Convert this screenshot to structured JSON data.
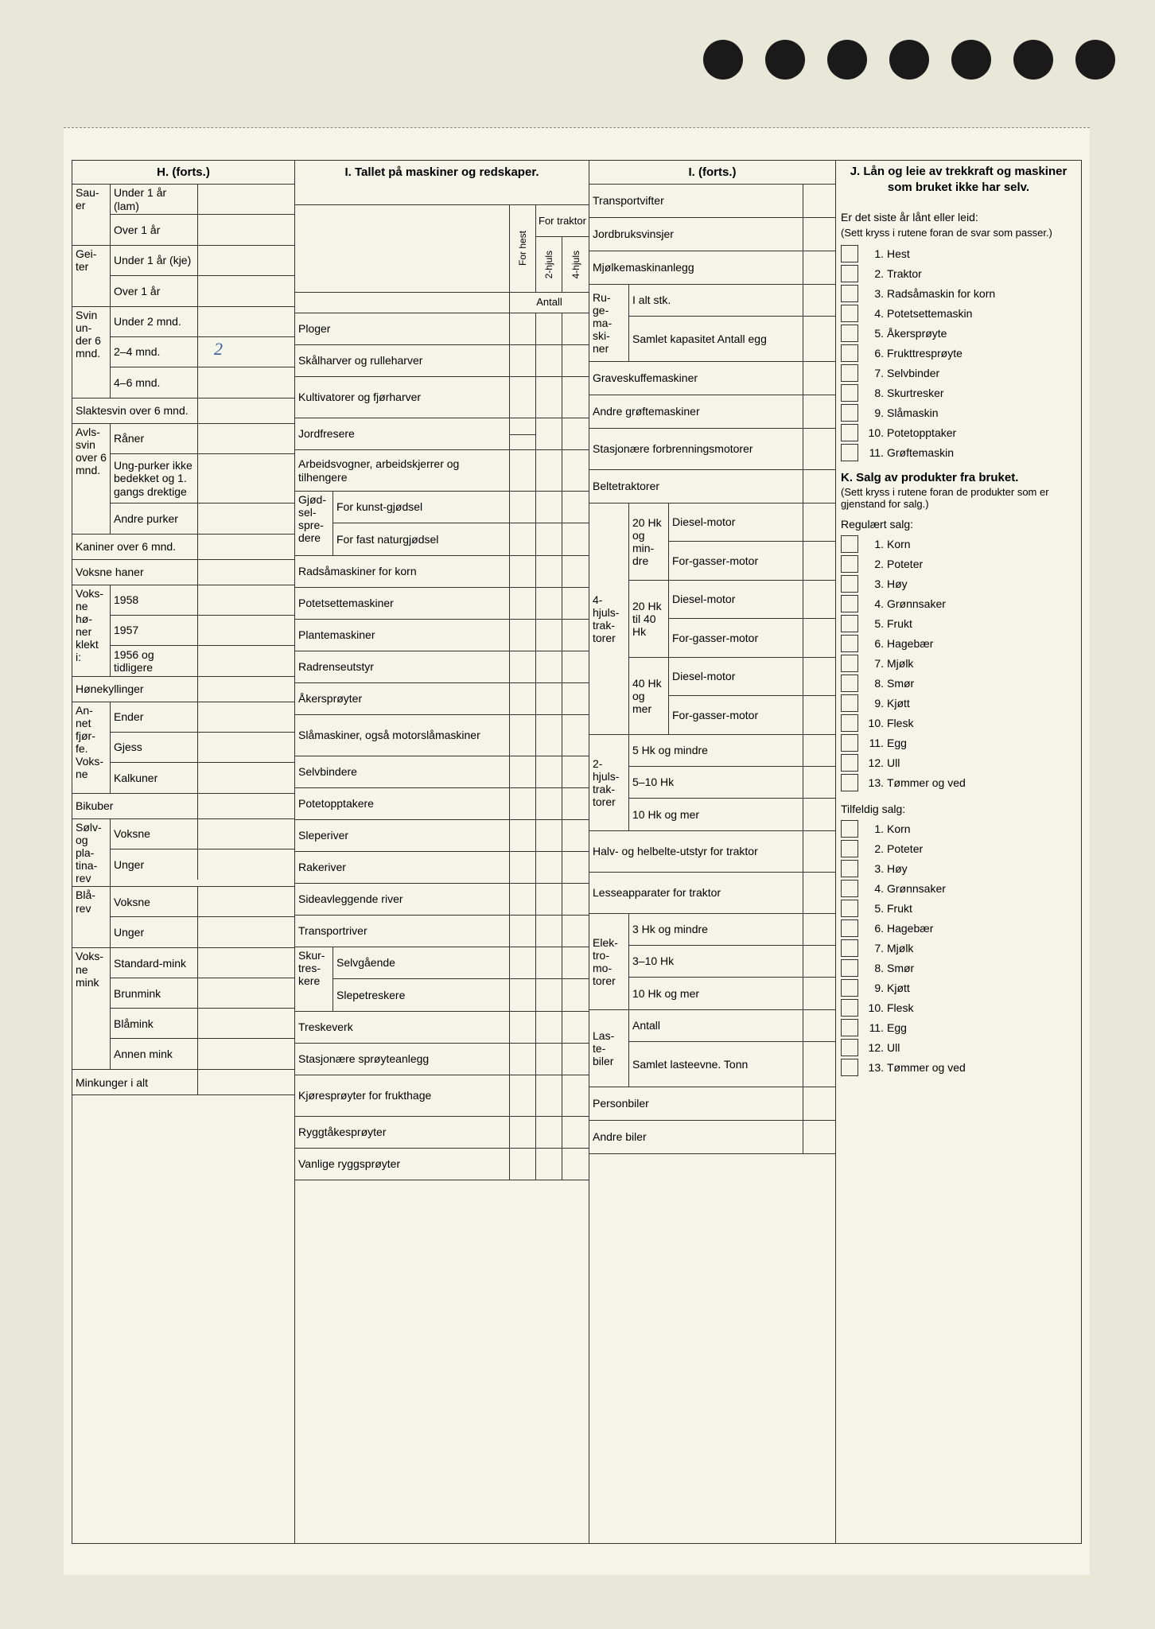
{
  "background_color": "#e8e8d8",
  "paper_color": "#f4f5e8",
  "border_color": "#333333",
  "handwriting_color": "#3a5a9a",
  "punch_holes": 7,
  "H": {
    "title": "H. (forts.)",
    "groups": [
      {
        "stub": "Sau-er",
        "rows": [
          {
            "l": "Under 1 år (lam)"
          },
          {
            "l": "Over 1 år"
          }
        ]
      },
      {
        "stub": "Gei-ter",
        "rows": [
          {
            "l": "Under 1 år (kje)"
          },
          {
            "l": "Over 1 år"
          }
        ]
      },
      {
        "stub": "Svin un-der 6 mnd.",
        "rows": [
          {
            "l": "Under 2 mnd."
          },
          {
            "l": "2–4 mnd.",
            "hand": "2"
          },
          {
            "l": "4–6 mnd."
          }
        ]
      },
      {
        "stub": "",
        "full": "Slaktesvin over 6 mnd."
      },
      {
        "stub": "Avls-svin over 6 mnd.",
        "rows": [
          {
            "l": "Råner"
          },
          {
            "l": "Ung-purker ikke bedekket og 1. gangs drektige"
          },
          {
            "l": "Andre purker"
          }
        ]
      },
      {
        "stub": "",
        "full": "Kaniner over 6 mnd."
      },
      {
        "stub": "",
        "full": "Voksne haner"
      },
      {
        "stub": "Voks-ne hø-ner klekt i:",
        "rows": [
          {
            "l": "1958"
          },
          {
            "l": "1957"
          },
          {
            "l": "1956 og tidligere"
          }
        ]
      },
      {
        "stub": "",
        "full": "Hønekyllinger"
      },
      {
        "stub": "An-net fjør-fe. Voks-ne",
        "rows": [
          {
            "l": "Ender"
          },
          {
            "l": "Gjess"
          },
          {
            "l": "Kalkuner"
          }
        ]
      },
      {
        "stub": "",
        "full": "Bikuber"
      },
      {
        "stub": "Sølv- og pla-tina-rev",
        "rows": [
          {
            "l": "Voksne"
          },
          {
            "l": "Unger"
          }
        ]
      },
      {
        "stub": "Blå-rev",
        "rows": [
          {
            "l": "Voksne"
          },
          {
            "l": "Unger"
          }
        ]
      },
      {
        "stub": "Voks-ne mink",
        "rows": [
          {
            "l": "Standard-mink"
          },
          {
            "l": "Brunmink"
          },
          {
            "l": "Blåmink"
          },
          {
            "l": "Annen mink"
          }
        ]
      },
      {
        "stub": "",
        "full": "Minkunger i alt"
      }
    ]
  },
  "I": {
    "title": "I. Tallet på maskiner og redskaper.",
    "col_headers": {
      "c1": "For hest",
      "c_group": "For traktor",
      "c2": "2-hjuls",
      "c3": "4-hjuls",
      "antall": "Antall"
    },
    "rows": [
      {
        "l": "Ploger"
      },
      {
        "l": "Skålharver og rulleharver"
      },
      {
        "l": "Kultivatorer og fjørharver"
      },
      {
        "l": "Jordfresere",
        "strike": true
      },
      {
        "l": "Arbeidsvogner, arbeidskjerrer og tilhengere"
      },
      {
        "stub": "Gjød-sel-spre-dere",
        "sub": [
          {
            "l": "For kunst-gjødsel"
          },
          {
            "l": "For fast naturgjødsel"
          }
        ]
      },
      {
        "l": "Radsåmaskiner for korn"
      },
      {
        "l": "Potetsettemaskiner"
      },
      {
        "l": "Plantemaskiner"
      },
      {
        "l": "Radrenseutstyr"
      },
      {
        "l": "Åkersprøyter"
      },
      {
        "l": "Slåmaskiner, også motorslåmaskiner"
      },
      {
        "l": "Selvbindere"
      },
      {
        "l": "Potetopptakere"
      },
      {
        "l": "Sleperiver"
      },
      {
        "l": "Rakeriver"
      },
      {
        "l": "Sideavleggende river"
      },
      {
        "l": "Transportriver"
      },
      {
        "stub": "Skur-tres-kere",
        "sub": [
          {
            "l": "Selvgående"
          },
          {
            "l": "Slepetreskere"
          }
        ]
      },
      {
        "l": "Treskeverk"
      },
      {
        "l": "Stasjonære sprøyteanlegg"
      },
      {
        "l": "Kjøresprøyter for frukthage"
      },
      {
        "l": "Ryggtåkesprøyter"
      },
      {
        "l": "Vanlige ryggsprøyter"
      }
    ]
  },
  "I2": {
    "title": "I. (forts.)",
    "rows": [
      {
        "l": "Transportvifter"
      },
      {
        "l": "Jordbruksvinsjer"
      },
      {
        "l": "Mjølkemaskinanlegg"
      },
      {
        "stub": "Ru-ge-ma-ski-ner",
        "sub": [
          {
            "l": "I alt stk."
          },
          {
            "l": "Samlet kapasitet Antall egg"
          }
        ]
      },
      {
        "l": "Graveskuffemaskiner"
      },
      {
        "l": "Andre grøftemaskiner"
      },
      {
        "l": "Stasjonære forbrenningsmotorer"
      },
      {
        "l": "Beltetraktorer"
      },
      {
        "stub": "4-hjuls-trak-torer",
        "groups": [
          {
            "g": "20 Hk og min-dre",
            "sub": [
              {
                "l": "Diesel-motor"
              },
              {
                "l": "For-gasser-motor"
              }
            ]
          },
          {
            "g": "20 Hk til 40 Hk",
            "sub": [
              {
                "l": "Diesel-motor"
              },
              {
                "l": "For-gasser-motor"
              }
            ]
          },
          {
            "g": "40 Hk og mer",
            "sub": [
              {
                "l": "Diesel-motor"
              },
              {
                "l": "For-gasser-motor"
              }
            ]
          }
        ]
      },
      {
        "stub": "2-hjuls-trak-torer",
        "sub": [
          {
            "l": "5 Hk og mindre"
          },
          {
            "l": "5–10 Hk"
          },
          {
            "l": "10 Hk og mer"
          }
        ]
      },
      {
        "l": "Halv- og helbelte-utstyr for traktor"
      },
      {
        "l": "Lesseapparater for traktor"
      },
      {
        "stub": "Elek-tro-mo-torer",
        "sub": [
          {
            "l": "3 Hk og mindre"
          },
          {
            "l": "3–10 Hk"
          },
          {
            "l": "10 Hk og mer"
          }
        ]
      },
      {
        "stub": "Las-te-biler",
        "sub": [
          {
            "l": "Antall"
          },
          {
            "l": "Samlet lasteevne. Tonn"
          }
        ]
      },
      {
        "l": "Personbiler"
      },
      {
        "l": "Andre biler"
      }
    ]
  },
  "J": {
    "title": "J. Lån og leie av trekkraft og maskiner som bruket ikke har selv.",
    "intro": "Er det siste år lånt eller leid:",
    "note": "(Sett kryss i rutene foran de svar som passer.)",
    "items": [
      "Hest",
      "Traktor",
      "Radsåmaskin for korn",
      "Potetsettemaskin",
      "Åkersprøyte",
      "Frukttresprøyte",
      "Selvbinder",
      "Skurtresker",
      "Slåmaskin",
      "Potetopptaker",
      "Grøftemaskin"
    ]
  },
  "K": {
    "title": "K. Salg av produkter fra bruket.",
    "note": "(Sett kryss i rutene foran de produkter som er gjenstand for salg.)",
    "reg_label": "Regulært salg:",
    "tilf_label": "Tilfeldig salg:",
    "items": [
      "Korn",
      "Poteter",
      "Høy",
      "Grønnsaker",
      "Frukt",
      "Hagebær",
      "Mjølk",
      "Smør",
      "Kjøtt",
      "Flesk",
      "Egg",
      "Ull",
      "Tømmer og ved"
    ]
  }
}
